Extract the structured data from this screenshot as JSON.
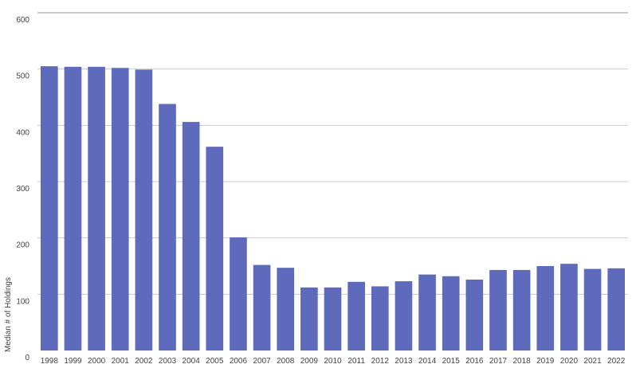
{
  "chart_data": {
    "type": "bar",
    "title": "",
    "xlabel": "",
    "ylabel": "Median # of Holdings",
    "ylim": [
      0,
      600
    ],
    "yticks": [
      0,
      100,
      200,
      300,
      400,
      500,
      600
    ],
    "grid": true,
    "bar_color": "#5e6bbd",
    "grid_color": "#cccccc",
    "categories": [
      "1998",
      "1999",
      "2000",
      "2001",
      "2002",
      "2003",
      "2004",
      "2005",
      "2006",
      "2007",
      "2008",
      "2009",
      "2010",
      "2011",
      "2012",
      "2013",
      "2014",
      "2015",
      "2016",
      "2017",
      "2018",
      "2019",
      "2020",
      "2021",
      "2022"
    ],
    "values": [
      505,
      504,
      504,
      502,
      499,
      438,
      406,
      362,
      201,
      152,
      147,
      112,
      112,
      122,
      114,
      123,
      135,
      132,
      126,
      143,
      143,
      150,
      154,
      145,
      146
    ]
  }
}
